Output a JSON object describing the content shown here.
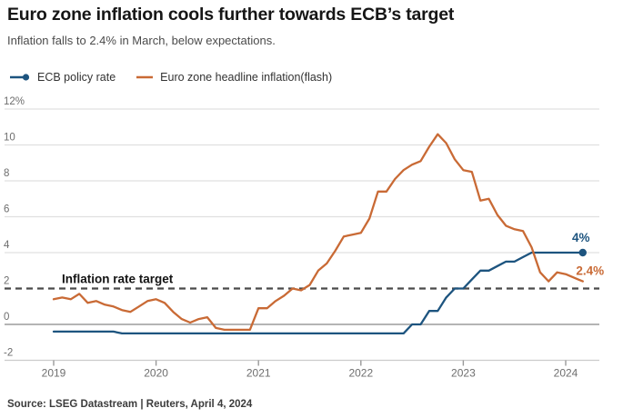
{
  "header": {
    "title": "Euro zone inflation cools further towards ECB’s target",
    "subtitle": "Inflation falls to 2.4% in March, below expectations."
  },
  "legend": {
    "items": [
      {
        "label": "ECB policy rate",
        "color": "#1d547f",
        "marker": "line-dot"
      },
      {
        "label": "Euro zone headline inflation(flash)",
        "color": "#c96a35",
        "marker": "line"
      }
    ]
  },
  "chart_data": {
    "type": "line",
    "x_unit": "decimal_year",
    "xlim": [
      2018.95,
      2024.35
    ],
    "ylim": [
      -2,
      12
    ],
    "grid": true,
    "legend_position": "top-left",
    "x_ticks": [
      {
        "t": 2019,
        "label": "2019"
      },
      {
        "t": 2020,
        "label": "2020"
      },
      {
        "t": 2021,
        "label": "2021"
      },
      {
        "t": 2022,
        "label": "2022"
      },
      {
        "t": 2023,
        "label": "2023"
      },
      {
        "t": 2024,
        "label": "2024"
      }
    ],
    "y_ticks": [
      {
        "v": -2,
        "label": "-2"
      },
      {
        "v": 0,
        "label": "0"
      },
      {
        "v": 2,
        "label": "2"
      },
      {
        "v": 4,
        "label": "4"
      },
      {
        "v": 6,
        "label": "6"
      },
      {
        "v": 8,
        "label": "8"
      },
      {
        "v": 10,
        "label": "10"
      },
      {
        "v": 12,
        "label": "12%"
      }
    ],
    "target_line": {
      "value": 2,
      "label": "Inflation rate target"
    },
    "series": [
      {
        "name": "ECB policy rate",
        "color": "#1d547f",
        "end_label": "4%",
        "end_dot": true,
        "start_year": 2019,
        "start_month": 1,
        "values": [
          -0.4,
          -0.4,
          -0.4,
          -0.4,
          -0.4,
          -0.4,
          -0.4,
          -0.4,
          -0.5,
          -0.5,
          -0.5,
          -0.5,
          -0.5,
          -0.5,
          -0.5,
          -0.5,
          -0.5,
          -0.5,
          -0.5,
          -0.5,
          -0.5,
          -0.5,
          -0.5,
          -0.5,
          -0.5,
          -0.5,
          -0.5,
          -0.5,
          -0.5,
          -0.5,
          -0.5,
          -0.5,
          -0.5,
          -0.5,
          -0.5,
          -0.5,
          -0.5,
          -0.5,
          -0.5,
          -0.5,
          -0.5,
          -0.5,
          0,
          0,
          0.75,
          0.75,
          1.5,
          2,
          2,
          2.5,
          3,
          3,
          3.25,
          3.5,
          3.5,
          3.75,
          4,
          4,
          4,
          4,
          4,
          4,
          4
        ]
      },
      {
        "name": "Euro zone headline inflation(flash)",
        "color": "#c96a35",
        "end_label": "2.4%",
        "end_dot": false,
        "start_year": 2019,
        "start_month": 1,
        "values": [
          1.4,
          1.5,
          1.4,
          1.7,
          1.2,
          1.3,
          1.1,
          1.0,
          0.8,
          0.7,
          1.0,
          1.3,
          1.4,
          1.2,
          0.7,
          0.3,
          0.1,
          0.3,
          0.4,
          -0.2,
          -0.3,
          -0.3,
          -0.3,
          -0.3,
          0.9,
          0.9,
          1.3,
          1.6,
          2.0,
          1.9,
          2.2,
          3.0,
          3.4,
          4.1,
          4.9,
          5.0,
          5.1,
          5.9,
          7.4,
          7.4,
          8.1,
          8.6,
          8.9,
          9.1,
          9.9,
          10.6,
          10.1,
          9.2,
          8.6,
          8.5,
          6.9,
          7.0,
          6.1,
          5.5,
          5.3,
          5.2,
          4.3,
          2.9,
          2.4,
          2.9,
          2.8,
          2.6,
          2.4
        ]
      }
    ]
  },
  "colors": {
    "blue": "#1d547f",
    "orange": "#c96a35",
    "grid": "#e0e0e0",
    "axis_line": "#cccccc",
    "zero_line": "#868686",
    "target_line": "#4a4a4a",
    "tick_label": "#6e6e6e",
    "target_label": "#141414"
  },
  "footer": {
    "source": "Source: LSEG Datastream | Reuters, April 4, 2024"
  }
}
